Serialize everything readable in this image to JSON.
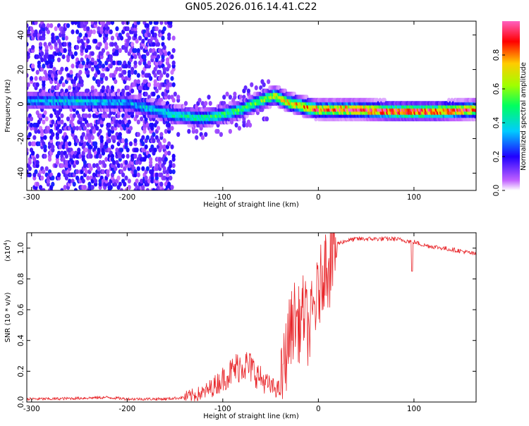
{
  "title": "GN05.2026.016.14.41.C22",
  "colors": {
    "line": "#e8262a",
    "colormap": [
      "#ffffff",
      "#a000ff",
      "#0000ff",
      "#00ccff",
      "#00ff80",
      "#80ff00",
      "#ffcc00",
      "#ff0000",
      "#ff66cc"
    ]
  },
  "chart_data": [
    {
      "type": "heatmap",
      "title": "GN05.2026.016.14.41.C22",
      "xlabel": "Height of straight line (km)",
      "ylabel": "Frequency (Hz)",
      "xlim": [
        -305,
        165
      ],
      "ylim": [
        -50,
        48
      ],
      "xticks": [
        -300,
        -200,
        -100,
        0,
        100
      ],
      "xtick_labels": [
        "-300",
        "-200",
        "-100",
        "0",
        "100"
      ],
      "yticks": [
        -40,
        -20,
        0,
        20,
        40
      ],
      "ytick_labels": [
        "-40",
        "-20",
        "0",
        "20",
        "40"
      ],
      "colorbar": {
        "label": "Normalized spectral amplitude",
        "range": [
          0,
          1
        ],
        "ticks": [
          0.0,
          0.2,
          0.4,
          0.6,
          0.8
        ],
        "tick_labels": [
          "0.0",
          "0.2",
          "0.4",
          "0.6",
          "0.8"
        ]
      },
      "features": {
        "noise_region_x": [
          -305,
          -150
        ],
        "ridge": {
          "x": [
            -305,
            -250,
            -200,
            -150,
            -120,
            -100,
            -80,
            -60,
            -45,
            -30,
            -10,
            0,
            40,
            80,
            120,
            165
          ],
          "y": [
            2,
            2,
            1,
            -6,
            -8,
            -6,
            -3,
            2,
            5,
            1,
            -2,
            -3,
            -3,
            -4,
            -4,
            -3
          ],
          "peak_amplitude": [
            0.35,
            0.4,
            0.35,
            0.45,
            0.5,
            0.5,
            0.55,
            0.6,
            0.7,
            0.75,
            0.85,
            0.9,
            0.95,
            0.95,
            0.95,
            0.9
          ]
        }
      }
    },
    {
      "type": "line",
      "xlabel": "Height of straight line (km)",
      "ylabel": "SNR (10 * v/v)",
      "y_multiplier": "(x10",
      "y_multiplier_exp": "4",
      "y_multiplier_close": ")",
      "xlim": [
        -305,
        165
      ],
      "ylim": [
        0,
        1.1
      ],
      "xticks": [
        -300,
        -200,
        -100,
        0,
        100
      ],
      "xtick_labels": [
        "-300",
        "-200",
        "-100",
        "0",
        "100"
      ],
      "yticks": [
        0.0,
        0.2,
        0.4,
        0.6,
        0.8,
        1.0
      ],
      "ytick_labels": [
        "0.0",
        "0.2",
        "0.4",
        "0.6",
        "0.8",
        "1.0"
      ],
      "series": [
        {
          "name": "SNR",
          "x": [
            -305,
            -280,
            -250,
            -220,
            -200,
            -160,
            -140,
            -120,
            -110,
            -100,
            -90,
            -80,
            -70,
            -60,
            -50,
            -40,
            -30,
            -25,
            -20,
            -15,
            -10,
            -5,
            0,
            5,
            10,
            15,
            20,
            30,
            40,
            60,
            80,
            90,
            100,
            110,
            130,
            150,
            165
          ],
          "y": [
            0.02,
            0.02,
            0.025,
            0.03,
            0.02,
            0.02,
            0.03,
            0.06,
            0.1,
            0.15,
            0.2,
            0.25,
            0.22,
            0.15,
            0.1,
            0.08,
            0.45,
            0.55,
            0.5,
            0.6,
            0.45,
            0.6,
            0.7,
            0.85,
            0.95,
            1.0,
            1.03,
            1.05,
            1.06,
            1.06,
            1.06,
            1.05,
            1.04,
            1.02,
            1.0,
            0.98,
            0.96
          ]
        }
      ]
    }
  ]
}
